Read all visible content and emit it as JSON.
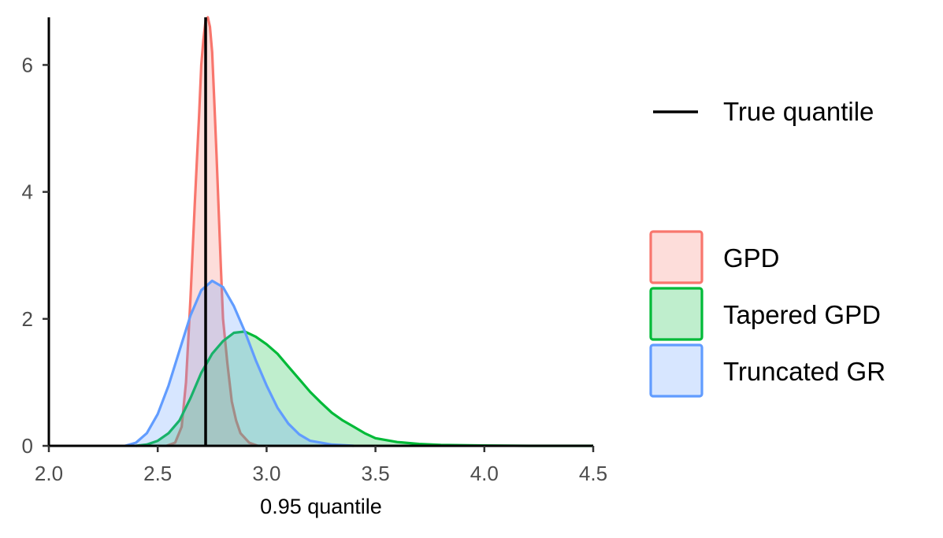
{
  "chart_data": {
    "type": "area",
    "xlabel": "0.95 quantile",
    "ylabel": "",
    "xlim": [
      2.0,
      4.5
    ],
    "ylim": [
      0,
      6.75
    ],
    "x_ticks": [
      "2.0",
      "2.5",
      "3.0",
      "3.5",
      "4.0",
      "4.5"
    ],
    "y_ticks": [
      "0",
      "2",
      "4",
      "6"
    ],
    "grid": false,
    "legend_position": "right",
    "reference_line": {
      "name": "True quantile",
      "x": 2.72,
      "color": "#000000"
    },
    "series": [
      {
        "name": "GPD",
        "stroke": "#f8766d",
        "fill": "#f8766d",
        "points": [
          [
            2.54,
            0
          ],
          [
            2.58,
            0.05
          ],
          [
            2.61,
            0.3
          ],
          [
            2.63,
            1.0
          ],
          [
            2.65,
            2.3
          ],
          [
            2.67,
            3.8
          ],
          [
            2.69,
            5.2
          ],
          [
            2.7,
            6.0
          ],
          [
            2.71,
            6.4
          ],
          [
            2.72,
            6.7
          ],
          [
            2.73,
            6.75
          ],
          [
            2.74,
            6.6
          ],
          [
            2.75,
            6.2
          ],
          [
            2.76,
            5.4
          ],
          [
            2.77,
            4.6
          ],
          [
            2.78,
            3.7
          ],
          [
            2.79,
            2.8
          ],
          [
            2.8,
            2.0
          ],
          [
            2.82,
            1.3
          ],
          [
            2.84,
            0.7
          ],
          [
            2.86,
            0.4
          ],
          [
            2.88,
            0.2
          ],
          [
            2.92,
            0.05
          ],
          [
            2.96,
            0
          ]
        ]
      },
      {
        "name": "Tapered GPD",
        "stroke": "#00ba38",
        "fill": "#00ba38",
        "points": [
          [
            2.4,
            0
          ],
          [
            2.45,
            0.02
          ],
          [
            2.5,
            0.08
          ],
          [
            2.55,
            0.2
          ],
          [
            2.6,
            0.4
          ],
          [
            2.65,
            0.75
          ],
          [
            2.7,
            1.15
          ],
          [
            2.75,
            1.45
          ],
          [
            2.8,
            1.65
          ],
          [
            2.85,
            1.78
          ],
          [
            2.9,
            1.8
          ],
          [
            2.95,
            1.72
          ],
          [
            3.0,
            1.6
          ],
          [
            3.05,
            1.45
          ],
          [
            3.1,
            1.25
          ],
          [
            3.15,
            1.05
          ],
          [
            3.2,
            0.85
          ],
          [
            3.25,
            0.68
          ],
          [
            3.3,
            0.52
          ],
          [
            3.35,
            0.4
          ],
          [
            3.4,
            0.3
          ],
          [
            3.45,
            0.2
          ],
          [
            3.5,
            0.12
          ],
          [
            3.6,
            0.06
          ],
          [
            3.7,
            0.03
          ],
          [
            3.8,
            0.015
          ],
          [
            4.0,
            0.005
          ],
          [
            4.2,
            0
          ],
          [
            4.5,
            0
          ]
        ]
      },
      {
        "name": "Truncated GR",
        "stroke": "#619cff",
        "fill": "#619cff",
        "points": [
          [
            2.35,
            0
          ],
          [
            2.4,
            0.05
          ],
          [
            2.45,
            0.2
          ],
          [
            2.5,
            0.5
          ],
          [
            2.55,
            0.95
          ],
          [
            2.6,
            1.5
          ],
          [
            2.65,
            2.05
          ],
          [
            2.7,
            2.45
          ],
          [
            2.75,
            2.6
          ],
          [
            2.8,
            2.5
          ],
          [
            2.85,
            2.2
          ],
          [
            2.9,
            1.8
          ],
          [
            2.95,
            1.35
          ],
          [
            3.0,
            0.95
          ],
          [
            3.05,
            0.6
          ],
          [
            3.1,
            0.35
          ],
          [
            3.15,
            0.18
          ],
          [
            3.2,
            0.08
          ],
          [
            3.3,
            0.02
          ],
          [
            3.4,
            0
          ]
        ]
      }
    ]
  }
}
